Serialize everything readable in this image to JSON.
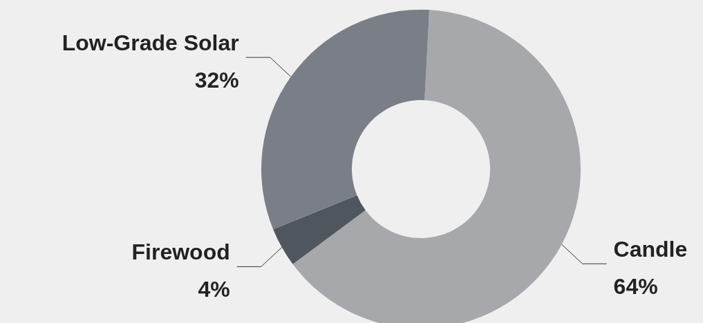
{
  "chart_data": {
    "type": "donut",
    "categories": [
      "Candle",
      "Firewood",
      "Low-Grade Solar"
    ],
    "values": [
      64,
      4,
      32
    ],
    "colors": [
      "#a6a8ab",
      "#50565e",
      "#7a7f87"
    ],
    "value_labels": [
      "64%",
      "4%",
      "32%"
    ],
    "legend": false
  }
}
